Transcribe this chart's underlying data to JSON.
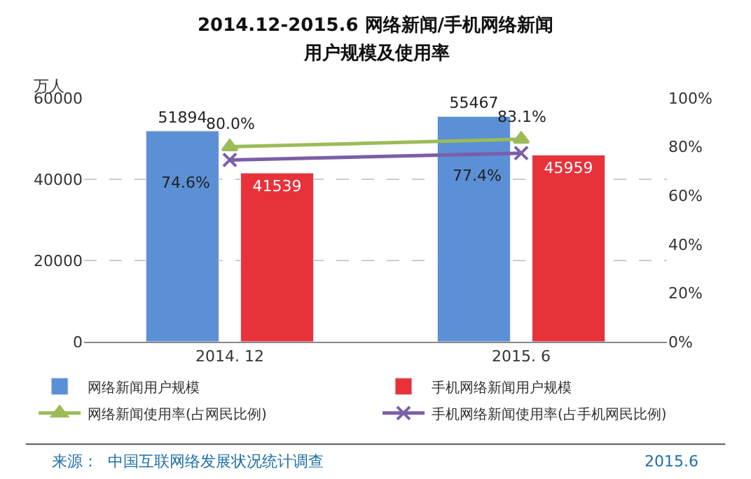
{
  "chart_data": {
    "type": "bar",
    "title": "2014.12-2015.6 网络新闻/手机网络新闻",
    "subtitle": "用户规模及使用率",
    "ylabel": "万人",
    "categories": [
      "2014. 12",
      "2015. 6"
    ],
    "series": [
      {
        "name": "网络新闻用户规模",
        "color": "#5b8fd6",
        "values": [
          51894,
          55467
        ],
        "value_labels": [
          "51894",
          "55467"
        ]
      },
      {
        "name": "手机网络新闻用户规模",
        "color": "#e8323a",
        "values": [
          41539,
          45959
        ],
        "value_labels": [
          "41539",
          "45959"
        ]
      },
      {
        "name": "网络新闻使用率(占网民比例)",
        "type": "line",
        "axis": "y2",
        "marker": "triangle",
        "color": "#9bbb59",
        "values": [
          80.0,
          83.1
        ],
        "value_labels": [
          "80.0%",
          "83.1%"
        ]
      },
      {
        "name": "手机网络新闻使用率(占手机网民比例)",
        "type": "line",
        "axis": "y2",
        "marker": "cross",
        "color": "#7b5ea7",
        "values": [
          74.6,
          77.4
        ],
        "value_labels": [
          "74.6%",
          "77.4%"
        ]
      }
    ],
    "ylim": [
      0,
      60000
    ],
    "yticks": [
      0,
      20000,
      40000,
      60000
    ],
    "y2lim": [
      0,
      100
    ],
    "y2ticks": [
      {
        "value": 0,
        "label": "0%"
      },
      {
        "value": 20,
        "label": "20%"
      },
      {
        "value": 40,
        "label": "40%"
      },
      {
        "value": 60,
        "label": "60%"
      },
      {
        "value": 80,
        "label": "80%"
      },
      {
        "value": 100,
        "label": "100%"
      }
    ],
    "grid": "y",
    "legend": "bottom",
    "annotations": [
      "来源：  中国互联网络发展状况统计调查",
      "2015.6"
    ]
  }
}
